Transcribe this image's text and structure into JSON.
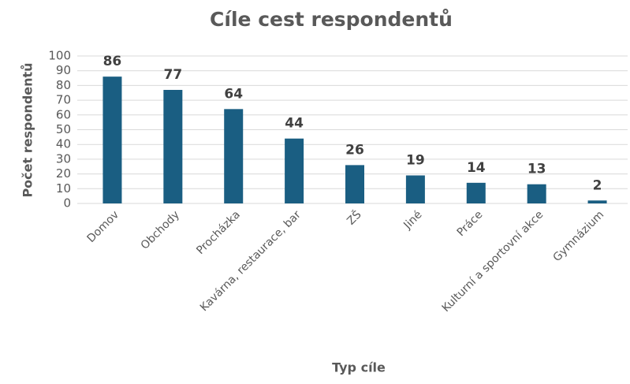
{
  "chart_data": {
    "type": "bar",
    "title": "Cíle cest respondentů",
    "x_label": "Typ cíle",
    "y_label": "Počet respondentů",
    "categories": [
      "Domov",
      "Obchody",
      "Procházka",
      "Kavárna, restaurace, bar",
      "ZŠ",
      "Jiné",
      "Práce",
      "Kulturní a sportovní akce",
      "Gymnázium"
    ],
    "values": [
      86,
      77,
      64,
      44,
      26,
      19,
      14,
      13,
      2
    ],
    "color": "#1a5e82",
    "ylim": [
      0,
      100
    ],
    "yticks": [
      0,
      10,
      20,
      30,
      40,
      50,
      60,
      70,
      80,
      90,
      100
    ],
    "grid": true
  }
}
